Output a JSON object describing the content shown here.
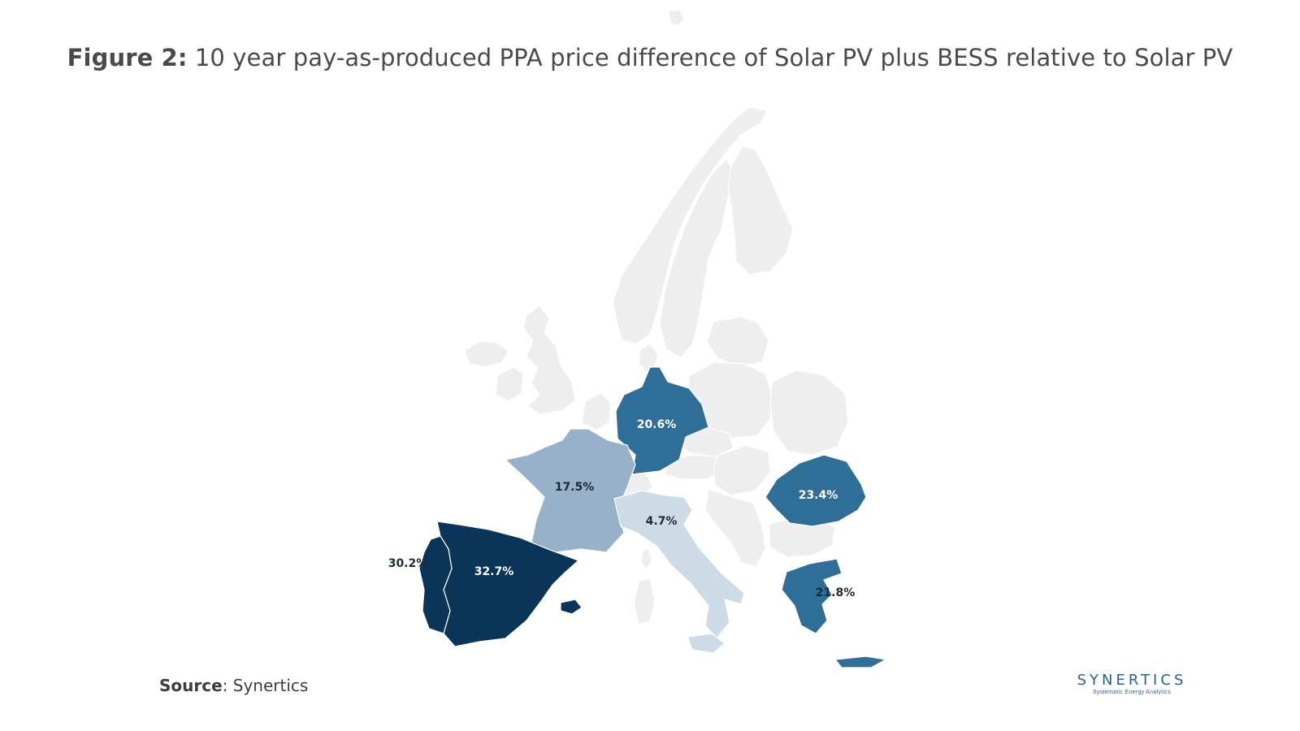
{
  "title": {
    "prefix": "Figure 2:",
    "text": "10 year pay-as-produced PPA price difference of Solar PV plus BESS relative to Solar PV"
  },
  "source": {
    "label": "Source",
    "text": ": Synertics"
  },
  "logo": {
    "name": "SYNERTICS",
    "tagline": "Systematic Energy Analytics"
  },
  "colors": {
    "no_data": "#eeeeee",
    "border": "#ffffff",
    "scale_dark": "#0b3558",
    "scale_mid": "#2f6e96",
    "scale_light": "#97b1c8",
    "scale_lightest": "#ccdbe6"
  },
  "countries": [
    {
      "name": "Spain",
      "value": "32.7%",
      "color": "#0b3558",
      "label_color": "#ffffff"
    },
    {
      "name": "Portugal",
      "value": "30.2%",
      "color": "#0b3558",
      "label_color": "#1b2a3a"
    },
    {
      "name": "Romania",
      "value": "23.4%",
      "color": "#2f6e96",
      "label_color": "#ffffff"
    },
    {
      "name": "Greece",
      "value": "21.8%",
      "color": "#2f6e96",
      "label_color": "#1b2a3a"
    },
    {
      "name": "Germany",
      "value": "20.6%",
      "color": "#2f6e96",
      "label_color": "#ffffff"
    },
    {
      "name": "France",
      "value": "17.5%",
      "color": "#97b1c8",
      "label_color": "#1b2a3a"
    },
    {
      "name": "Italy",
      "value": "4.7%",
      "color": "#ccdbe6",
      "label_color": "#1b2a3a"
    }
  ]
}
